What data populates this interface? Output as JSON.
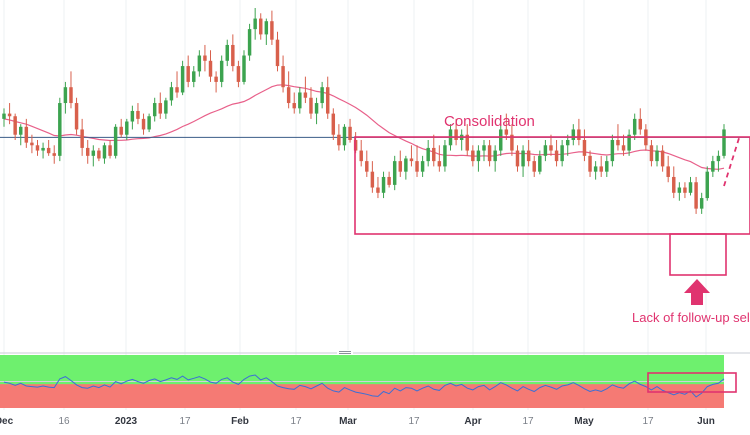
{
  "chart_data": {
    "type": "candlestick",
    "title": "",
    "colors": {
      "up": "#3ca34f",
      "down": "#d8604c",
      "sma": "#e8608a",
      "hline": "#3a5b87",
      "annotation": "#e0336f",
      "rsi_line": "#3b6fd6",
      "rsi_upper_zone": "#6ef06e",
      "rsi_lower_zone": "#f57a74"
    },
    "price_axis": {
      "min": 0,
      "max": 100,
      "note": "relative price scale (no price ticks visible)"
    },
    "horizontal_level": 51,
    "x_tick_labels": [
      "Dec",
      "16",
      "2023",
      "17",
      "Feb",
      "17",
      "Mar",
      "17",
      "Apr",
      "17",
      "May",
      "17",
      "Jun"
    ],
    "candles": [
      [
        58,
        62,
        55,
        60
      ],
      [
        60,
        64,
        56,
        59
      ],
      [
        59,
        60,
        50,
        52
      ],
      [
        52,
        56,
        48,
        55
      ],
      [
        55,
        58,
        47,
        49
      ],
      [
        49,
        52,
        45,
        48
      ],
      [
        48,
        50,
        44,
        46
      ],
      [
        46,
        49,
        43,
        47
      ],
      [
        47,
        50,
        44,
        45
      ],
      [
        45,
        48,
        41,
        44
      ],
      [
        44,
        66,
        42,
        64
      ],
      [
        64,
        72,
        60,
        70
      ],
      [
        70,
        76,
        62,
        64
      ],
      [
        64,
        66,
        52,
        54
      ],
      [
        54,
        58,
        44,
        47
      ],
      [
        47,
        50,
        41,
        44
      ],
      [
        44,
        48,
        40,
        46
      ],
      [
        46,
        47,
        42,
        43
      ],
      [
        43,
        49,
        41,
        48
      ],
      [
        48,
        50,
        43,
        44
      ],
      [
        44,
        56,
        43,
        55
      ],
      [
        55,
        58,
        51,
        52
      ],
      [
        52,
        58,
        50,
        57
      ],
      [
        57,
        63,
        54,
        61
      ],
      [
        61,
        64,
        56,
        58
      ],
      [
        58,
        60,
        52,
        54
      ],
      [
        54,
        60,
        53,
        59
      ],
      [
        59,
        66,
        57,
        64
      ],
      [
        64,
        68,
        58,
        60
      ],
      [
        60,
        66,
        58,
        65
      ],
      [
        65,
        72,
        63,
        70
      ],
      [
        70,
        76,
        66,
        68
      ],
      [
        68,
        80,
        67,
        78
      ],
      [
        78,
        82,
        70,
        72
      ],
      [
        72,
        78,
        70,
        76
      ],
      [
        76,
        84,
        74,
        82
      ],
      [
        82,
        86,
        76,
        80
      ],
      [
        80,
        84,
        72,
        74
      ],
      [
        74,
        76,
        68,
        72
      ],
      [
        72,
        82,
        70,
        80
      ],
      [
        80,
        88,
        78,
        86
      ],
      [
        86,
        90,
        76,
        78
      ],
      [
        78,
        80,
        70,
        72
      ],
      [
        72,
        84,
        71,
        82
      ],
      [
        82,
        94,
        80,
        92
      ],
      [
        92,
        100,
        88,
        96
      ],
      [
        96,
        98,
        88,
        90
      ],
      [
        90,
        96,
        86,
        95
      ],
      [
        95,
        99,
        86,
        88
      ],
      [
        88,
        91,
        76,
        78
      ],
      [
        78,
        82,
        68,
        70
      ],
      [
        70,
        76,
        62,
        64
      ],
      [
        64,
        68,
        60,
        62
      ],
      [
        62,
        70,
        60,
        68
      ],
      [
        68,
        74,
        64,
        66
      ],
      [
        66,
        70,
        58,
        60
      ],
      [
        60,
        66,
        56,
        64
      ],
      [
        64,
        72,
        62,
        70
      ],
      [
        70,
        74,
        58,
        60
      ],
      [
        60,
        62,
        50,
        52
      ],
      [
        52,
        56,
        46,
        48
      ],
      [
        48,
        56,
        46,
        55
      ],
      [
        55,
        58,
        49,
        50
      ],
      [
        50,
        53,
        45,
        46
      ],
      [
        46,
        50,
        40,
        42
      ],
      [
        42,
        46,
        36,
        38
      ],
      [
        38,
        42,
        30,
        32
      ],
      [
        32,
        36,
        28,
        30
      ],
      [
        30,
        38,
        28,
        36
      ],
      [
        36,
        38,
        32,
        33
      ],
      [
        33,
        44,
        31,
        42
      ],
      [
        42,
        46,
        36,
        38
      ],
      [
        38,
        44,
        35,
        43
      ],
      [
        43,
        48,
        40,
        42
      ],
      [
        42,
        48,
        36,
        38
      ],
      [
        38,
        44,
        36,
        42
      ],
      [
        42,
        50,
        40,
        47
      ],
      [
        47,
        52,
        40,
        42
      ],
      [
        42,
        48,
        38,
        40
      ],
      [
        40,
        50,
        38,
        48
      ],
      [
        48,
        56,
        46,
        54
      ],
      [
        54,
        58,
        48,
        50
      ],
      [
        50,
        54,
        46,
        52
      ],
      [
        52,
        56,
        44,
        46
      ],
      [
        46,
        48,
        40,
        42
      ],
      [
        42,
        48,
        38,
        46
      ],
      [
        46,
        50,
        42,
        48
      ],
      [
        48,
        50,
        40,
        42
      ],
      [
        42,
        48,
        38,
        46
      ],
      [
        46,
        56,
        44,
        54
      ],
      [
        54,
        60,
        50,
        52
      ],
      [
        52,
        56,
        44,
        46
      ],
      [
        46,
        48,
        38,
        40
      ],
      [
        40,
        48,
        36,
        46
      ],
      [
        46,
        50,
        40,
        42
      ],
      [
        42,
        44,
        36,
        38
      ],
      [
        38,
        46,
        37,
        44
      ],
      [
        44,
        50,
        42,
        48
      ],
      [
        48,
        52,
        44,
        46
      ],
      [
        46,
        50,
        40,
        42
      ],
      [
        42,
        50,
        40,
        48
      ],
      [
        48,
        52,
        44,
        50
      ],
      [
        50,
        56,
        48,
        54
      ],
      [
        54,
        58,
        48,
        50
      ],
      [
        50,
        54,
        42,
        44
      ],
      [
        44,
        46,
        36,
        38
      ],
      [
        38,
        42,
        35,
        40
      ],
      [
        40,
        44,
        36,
        38
      ],
      [
        38,
        44,
        36,
        42
      ],
      [
        42,
        52,
        40,
        50
      ],
      [
        50,
        56,
        46,
        48
      ],
      [
        48,
        52,
        44,
        46
      ],
      [
        46,
        54,
        44,
        52
      ],
      [
        52,
        60,
        50,
        58
      ],
      [
        58,
        62,
        52,
        54
      ],
      [
        54,
        56,
        46,
        48
      ],
      [
        48,
        50,
        40,
        42
      ],
      [
        42,
        48,
        40,
        46
      ],
      [
        46,
        48,
        38,
        40
      ],
      [
        40,
        44,
        34,
        36
      ],
      [
        36,
        40,
        28,
        30
      ],
      [
        30,
        34,
        27,
        32
      ],
      [
        32,
        34,
        28,
        30
      ],
      [
        30,
        36,
        29,
        34
      ],
      [
        34,
        36,
        22,
        24
      ],
      [
        24,
        30,
        22,
        28
      ],
      [
        28,
        40,
        27,
        38
      ],
      [
        38,
        44,
        36,
        42
      ],
      [
        42,
        46,
        38,
        44
      ],
      [
        44,
        56,
        43,
        54
      ]
    ],
    "sma": [
      58,
      57.6,
      57,
      56.5,
      56,
      55.2,
      54.3,
      53.5,
      52.6,
      51.7,
      51.5,
      51.9,
      52.1,
      51.8,
      51.4,
      51,
      50.6,
      50.2,
      50,
      49.8,
      49.9,
      49.9,
      50,
      50.3,
      50.5,
      50.6,
      50.8,
      51.3,
      51.7,
      52.3,
      53.1,
      54,
      55.1,
      56,
      57,
      58.1,
      59.2,
      60.2,
      61,
      61.8,
      62.8,
      63.6,
      64,
      64.6,
      65.6,
      66.9,
      68,
      69.1,
      70.2,
      70.8,
      70.9,
      70.6,
      70.2,
      69.9,
      69.6,
      69,
      68.4,
      68.1,
      67.6,
      66.7,
      65.6,
      64.6,
      63.5,
      62.3,
      60.9,
      59.4,
      57.6,
      55.8,
      54.3,
      52.8,
      51.7,
      50.6,
      49.6,
      48.7,
      47.6,
      46.7,
      46.1,
      45.4,
      44.6,
      44.2,
      44.2,
      44.1,
      44.2,
      44.1,
      43.9,
      43.9,
      44,
      43.9,
      44,
      44.5,
      44.9,
      45,
      44.9,
      44.9,
      44.8,
      44.5,
      44.4,
      44.5,
      44.6,
      44.5,
      44.6,
      44.8,
      45.2,
      45.5,
      45.5,
      45.1,
      44.8,
      44.5,
      44.3,
      44.6,
      44.8,
      44.8,
      45.1,
      45.7,
      46.1,
      46.2,
      45.9,
      45.8,
      45.5,
      44.9,
      44.1,
      43.3,
      42.5,
      41.8,
      40.7,
      39.6,
      39.2,
      39,
      38.9,
      39.3
    ],
    "rsi": [
      52,
      50,
      46,
      50,
      45,
      44,
      43,
      45,
      43,
      42,
      58,
      62,
      55,
      47,
      42,
      41,
      45,
      42,
      47,
      43,
      53,
      49,
      54,
      57,
      53,
      50,
      55,
      58,
      53,
      56,
      60,
      57,
      63,
      56,
      59,
      62,
      58,
      52,
      50,
      57,
      60,
      52,
      48,
      57,
      63,
      65,
      56,
      60,
      53,
      45,
      42,
      40,
      39,
      46,
      44,
      40,
      45,
      50,
      41,
      36,
      34,
      42,
      38,
      34,
      32,
      30,
      27,
      26,
      35,
      31,
      41,
      36,
      42,
      41,
      36,
      41,
      45,
      39,
      37,
      46,
      50,
      45,
      48,
      41,
      38,
      44,
      46,
      38,
      44,
      51,
      47,
      41,
      36,
      44,
      39,
      35,
      42,
      46,
      43,
      39,
      45,
      47,
      51,
      46,
      40,
      35,
      38,
      35,
      40,
      47,
      43,
      41,
      49,
      54,
      48,
      44,
      38,
      44,
      37,
      33,
      29,
      33,
      30,
      36,
      25,
      32,
      44,
      48,
      50,
      58
    ],
    "rsi_levels": {
      "upper": 70,
      "lower": 30
    },
    "annotations": {
      "consolidation_label": "Consolidation",
      "selling_label": "Lack of follow-up selling fa"
    }
  }
}
